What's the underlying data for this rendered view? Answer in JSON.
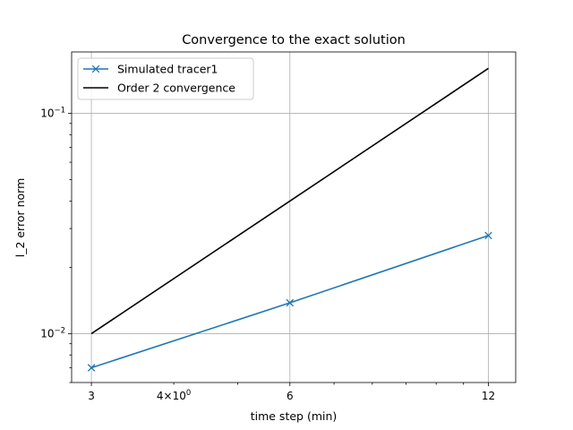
{
  "chart_data": {
    "type": "line",
    "title": "Convergence to the exact solution",
    "xlabel": "time step (min)",
    "ylabel": "l_2 error norm",
    "xscale": "log",
    "yscale": "log",
    "xlim": [
      2.8,
      13.2
    ],
    "ylim": [
      0.006,
      0.19
    ],
    "grid": true,
    "legend_position": "top-left",
    "x_major_ticks": [
      {
        "value": 3,
        "label": "3"
      },
      {
        "value": 6,
        "label": "6"
      },
      {
        "value": 12,
        "label": "12"
      }
    ],
    "x_extra_tick": {
      "value": 4,
      "base": "4×10",
      "exp": "0"
    },
    "x_minor_ticks": [
      5,
      7,
      8,
      9,
      10,
      11
    ],
    "y_major_ticks": [
      {
        "value": 0.01,
        "base": "10",
        "exp": "−2"
      },
      {
        "value": 0.1,
        "base": "10",
        "exp": "−1"
      }
    ],
    "y_minor_ticks": [
      0.006,
      0.007,
      0.008,
      0.009,
      0.02,
      0.03,
      0.04,
      0.05,
      0.06,
      0.07,
      0.08,
      0.09
    ],
    "series": [
      {
        "name": "Simulated tracer1",
        "color": "#1f77b4",
        "marker": "x",
        "x": [
          3,
          6,
          12
        ],
        "y": [
          0.007,
          0.0138,
          0.0279
        ]
      },
      {
        "name": "Order 2 convergence",
        "color": "#000000",
        "marker": "none",
        "x": [
          3,
          6,
          12
        ],
        "y": [
          0.01,
          0.04,
          0.16
        ]
      }
    ]
  }
}
